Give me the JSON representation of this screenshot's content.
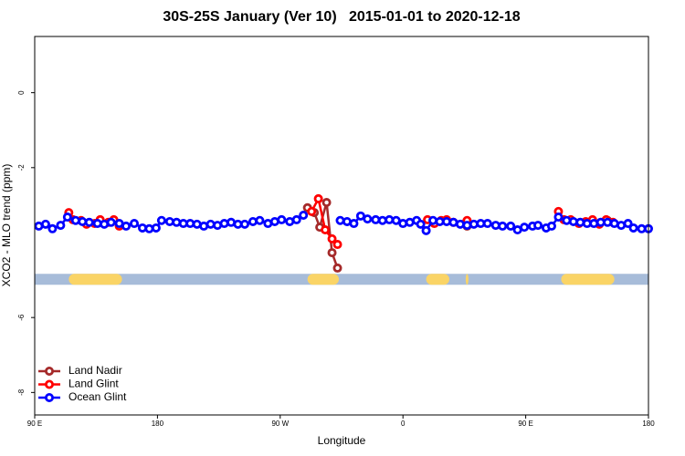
{
  "chart_data": {
    "type": "scatter-line",
    "title": "30S-25S January (Ver 10)   2015-01-01 to 2020-12-18",
    "x_label": "Longitude",
    "y_label": "XCO2 - MLO trend (ppm)",
    "xlim": [
      90,
      540
    ],
    "xticks": [
      {
        "value": 90,
        "label": "90 E"
      },
      {
        "value": 180,
        "label": "180"
      },
      {
        "value": 270,
        "label": "90 W"
      },
      {
        "value": 360,
        "label": "0"
      },
      {
        "value": 450,
        "label": "90 E"
      },
      {
        "value": 540,
        "label": "180"
      }
    ],
    "ylim": [
      -8.6,
      1.5
    ],
    "yticks": [
      0,
      -2,
      -6,
      -8
    ],
    "legend": "bottom-left",
    "band": {
      "y": -4.98,
      "color": "#a7bcd9",
      "land_color": "#fad466",
      "land_ranges": [
        [
          115,
          154
        ],
        [
          290,
          313
        ],
        [
          377,
          394
        ],
        [
          406,
          408
        ],
        [
          476,
          515
        ]
      ]
    },
    "series": [
      {
        "name": "Land Nadir",
        "color": "#a52a2a",
        "x": [
          290,
          295,
          299,
          304,
          308,
          312,
          400,
          407,
          450,
          510
        ],
        "values": [
          -3.07,
          -3.2,
          -3.59,
          -2.93,
          -4.27,
          -4.68,
          null,
          -3.56,
          null,
          -3.41
        ]
      },
      {
        "name": "Land Glint",
        "color": "#ff0000",
        "x": [
          115,
          118,
          124,
          128,
          134,
          138,
          144,
          148,
          152,
          200,
          293,
          298,
          303,
          308,
          312,
          350,
          378,
          383,
          388,
          392,
          397,
          407,
          440,
          474,
          478,
          483,
          489,
          494,
          499,
          504,
          509,
          514
        ],
        "values": [
          -3.2,
          -3.39,
          -3.41,
          -3.51,
          -3.49,
          -3.39,
          -3.46,
          -3.39,
          -3.56,
          null,
          -3.17,
          -2.83,
          -3.66,
          -3.9,
          -4.05,
          null,
          -3.39,
          -3.49,
          -3.41,
          -3.39,
          -3.46,
          -3.41,
          null,
          -3.17,
          -3.39,
          -3.39,
          -3.49,
          -3.44,
          -3.39,
          -3.51,
          -3.39,
          -3.46
        ]
      },
      {
        "name": "Ocean Glint",
        "color": "#0000ff",
        "x": [
          93,
          98,
          103,
          109,
          114,
          120,
          125,
          130,
          136,
          141,
          146,
          152,
          157,
          163,
          169,
          174,
          179,
          183,
          189,
          194,
          199,
          204,
          209,
          214,
          219,
          224,
          229,
          234,
          239,
          244,
          250,
          255,
          261,
          266,
          271,
          277,
          282,
          287,
          300,
          314,
          319,
          324,
          329,
          334,
          340,
          345,
          350,
          355,
          360,
          365,
          370,
          373,
          377,
          382,
          387,
          392,
          397,
          402,
          407,
          412,
          417,
          422,
          428,
          433,
          439,
          444,
          449,
          455,
          459,
          465,
          469,
          474,
          480,
          485,
          490,
          495,
          500,
          505,
          510,
          515,
          520,
          525,
          529,
          535,
          540
        ],
        "values": [
          -3.56,
          -3.51,
          -3.63,
          -3.54,
          -3.32,
          -3.41,
          -3.44,
          -3.46,
          -3.49,
          -3.51,
          -3.46,
          -3.49,
          -3.56,
          -3.49,
          -3.61,
          -3.63,
          -3.61,
          -3.41,
          -3.44,
          -3.46,
          -3.49,
          -3.49,
          -3.51,
          -3.56,
          -3.51,
          -3.54,
          -3.49,
          -3.46,
          -3.51,
          -3.51,
          -3.44,
          -3.41,
          -3.49,
          -3.44,
          -3.39,
          -3.44,
          -3.39,
          -3.27,
          null,
          -3.41,
          -3.44,
          -3.49,
          -3.29,
          -3.37,
          -3.39,
          -3.41,
          -3.39,
          -3.41,
          -3.49,
          -3.46,
          -3.41,
          -3.51,
          -3.68,
          -3.41,
          -3.44,
          -3.44,
          -3.46,
          -3.51,
          -3.54,
          -3.51,
          -3.49,
          -3.49,
          -3.54,
          -3.56,
          -3.56,
          -3.66,
          -3.59,
          -3.56,
          -3.54,
          -3.61,
          -3.56,
          -3.32,
          -3.41,
          -3.44,
          -3.46,
          -3.49,
          -3.49,
          -3.46,
          -3.46,
          -3.49,
          -3.54,
          -3.49,
          -3.61,
          -3.63,
          -3.63
        ]
      }
    ]
  }
}
